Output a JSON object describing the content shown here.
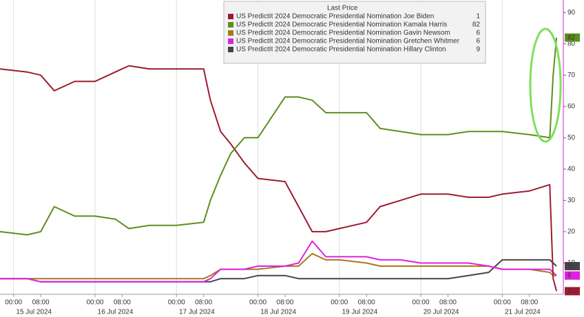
{
  "chart_data": {
    "type": "line",
    "x": [
      "2024-07-14T20:00",
      "2024-07-15T04:00",
      "2024-07-15T08:00",
      "2024-07-15T12:00",
      "2024-07-15T18:00",
      "2024-07-16T00:00",
      "2024-07-16T06:00",
      "2024-07-16T10:00",
      "2024-07-16T16:00",
      "2024-07-17T00:00",
      "2024-07-17T08:00",
      "2024-07-17T10:00",
      "2024-07-17T13:00",
      "2024-07-17T16:00",
      "2024-07-17T20:00",
      "2024-07-18T00:00",
      "2024-07-18T08:00",
      "2024-07-18T12:00",
      "2024-07-18T16:00",
      "2024-07-18T20:00",
      "2024-07-19T00:00",
      "2024-07-19T08:00",
      "2024-07-19T12:00",
      "2024-07-19T18:00",
      "2024-07-20T00:00",
      "2024-07-20T08:00",
      "2024-07-20T14:00",
      "2024-07-20T20:00",
      "2024-07-21T00:00",
      "2024-07-21T08:00",
      "2024-07-21T14:00",
      "2024-07-21T15:00",
      "2024-07-21T16:00"
    ],
    "xlim": [
      "2024-07-14T20:00",
      "2024-07-21T18:00"
    ],
    "xticks": [
      {
        "value": "2024-07-15T00:00",
        "label": "00:00"
      },
      {
        "value": "2024-07-15T08:00",
        "label": "08:00"
      },
      {
        "value": "2024-07-16T00:00",
        "label": "00:00"
      },
      {
        "value": "2024-07-16T08:00",
        "label": "08:00"
      },
      {
        "value": "2024-07-17T00:00",
        "label": "00:00"
      },
      {
        "value": "2024-07-17T08:00",
        "label": "08:00"
      },
      {
        "value": "2024-07-18T00:00",
        "label": "00:00"
      },
      {
        "value": "2024-07-18T08:00",
        "label": "08:00"
      },
      {
        "value": "2024-07-19T00:00",
        "label": "00:00"
      },
      {
        "value": "2024-07-19T08:00",
        "label": "08:00"
      },
      {
        "value": "2024-07-20T00:00",
        "label": "00:00"
      },
      {
        "value": "2024-07-20T08:00",
        "label": "08:00"
      },
      {
        "value": "2024-07-21T00:00",
        "label": "00:00"
      },
      {
        "value": "2024-07-21T08:00",
        "label": "08:00"
      }
    ],
    "dates": [
      {
        "value": "2024-07-15",
        "label": "15 Jul 2024"
      },
      {
        "value": "2024-07-16",
        "label": "16 Jul 2024"
      },
      {
        "value": "2024-07-17",
        "label": "17 Jul 2024"
      },
      {
        "value": "2024-07-18",
        "label": "18 Jul 2024"
      },
      {
        "value": "2024-07-19",
        "label": "19 Jul 2024"
      },
      {
        "value": "2024-07-20",
        "label": "20 Jul 2024"
      },
      {
        "value": "2024-07-21",
        "label": "21 Jul 2024"
      }
    ],
    "ylim": [
      0,
      94
    ],
    "yticks": [
      10,
      20,
      30,
      40,
      50,
      60,
      70,
      80,
      90
    ],
    "legend_title": "Last Price",
    "series": [
      {
        "name": "US PredictIt 2024 Democratic Presidential Nomination Joe Biden",
        "color": "#9b1b30",
        "values": [
          72,
          71,
          70,
          65,
          68,
          68,
          71,
          73,
          72,
          72,
          72,
          62,
          52,
          48,
          42,
          37,
          36,
          28,
          20,
          20,
          21,
          23,
          28,
          30,
          32,
          32,
          31,
          31,
          32,
          33,
          35,
          5,
          1
        ]
      },
      {
        "name": "US PredictIt 2024 Democratic Presidential Nomination Kamala Harris",
        "color": "#5c8f1c",
        "values": [
          20,
          19,
          20,
          28,
          25,
          25,
          24,
          21,
          22,
          22,
          23,
          30,
          38,
          45,
          50,
          50,
          63,
          63,
          62,
          58,
          58,
          58,
          53,
          52,
          51,
          51,
          52,
          52,
          52,
          51,
          50,
          70,
          82
        ]
      },
      {
        "name": "US PredictIt 2024 Democratic Presidential Nomination Gavin Newsom",
        "color": "#a8781c",
        "values": [
          5,
          5,
          5,
          5,
          5,
          5,
          5,
          5,
          5,
          5,
          5,
          6,
          8,
          8,
          8,
          8,
          9,
          9,
          13,
          11,
          11,
          10,
          9,
          9,
          9,
          9,
          9,
          9,
          8,
          8,
          7,
          6,
          6
        ]
      },
      {
        "name": "US PredictIt 2024 Democratic Presidential Nomination Gretchen Whitmer",
        "color": "#e020e0",
        "values": [
          5,
          5,
          4,
          4,
          4,
          4,
          4,
          4,
          4,
          4,
          4,
          5,
          8,
          8,
          8,
          9,
          9,
          10,
          17,
          12,
          12,
          12,
          11,
          11,
          10,
          10,
          10,
          9,
          8,
          8,
          8,
          7,
          6
        ]
      },
      {
        "name": "US PredictIt 2024 Democratic Presidential Nomination Hillary Clinton",
        "color": "#444444",
        "values": [
          5,
          5,
          4,
          4,
          4,
          4,
          4,
          4,
          4,
          4,
          4,
          4,
          5,
          5,
          5,
          6,
          6,
          5,
          5,
          5,
          5,
          5,
          5,
          5,
          5,
          5,
          6,
          7,
          11,
          11,
          11,
          10,
          9
        ]
      }
    ]
  }
}
